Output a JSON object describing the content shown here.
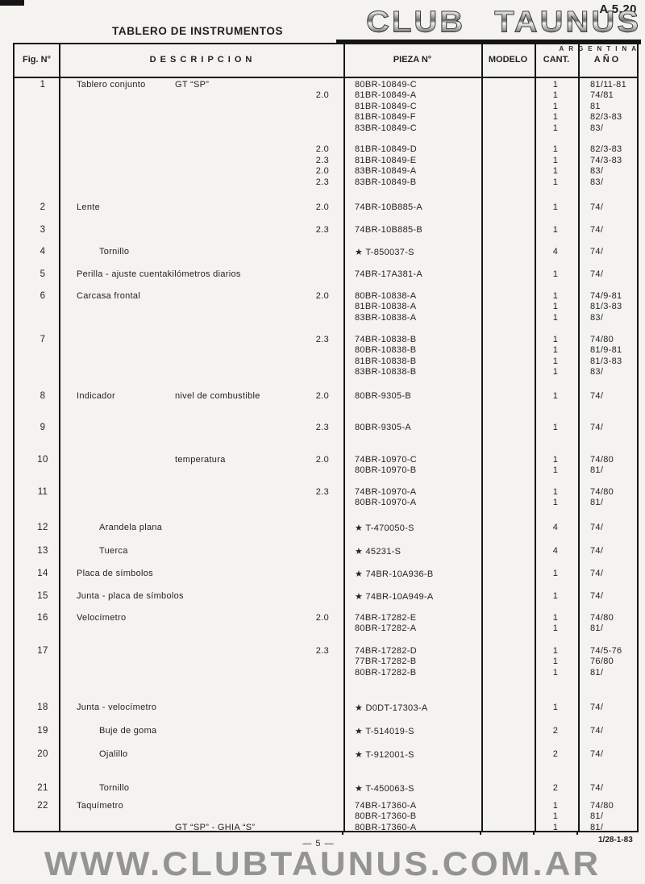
{
  "page": {
    "code": "A 5.20",
    "title": "TABLERO DE INSTRUMENTOS",
    "page_number": "— 5 —",
    "date_code": "1/28-1-83",
    "watermark": "WWW.CLUBTAUNUS.COM.AR"
  },
  "logo": {
    "name": "CLUB TAUNUS",
    "subtitle": "ARGENTINA"
  },
  "table": {
    "headers": {
      "fig": "Fig. N°",
      "desc": "D E S C R I P C I O N",
      "part": "PIEZA N°",
      "model": "MODELO",
      "qty": "CANT.",
      "year": "AÑO"
    },
    "rows": [
      {
        "fig": "1",
        "lines": [
          {
            "desc": "Tablero conjunto",
            "desc2": "GT “SP”",
            "part": "80BR-10849-C",
            "qty": "1",
            "year": "81/11-81"
          },
          {
            "eng": "2.0",
            "part": "81BR-10849-A",
            "qty": "1",
            "year": "74/81"
          },
          {
            "part": "81BR-10849-C",
            "qty": "1",
            "year": "81"
          },
          {
            "part": "81BR-10849-F",
            "qty": "1",
            "year": "82/3-83"
          },
          {
            "part": "83BR-10849-C",
            "qty": "1",
            "year": "83/"
          },
          {},
          {
            "eng": "2.0",
            "part": "81BR-10849-D",
            "qty": "1",
            "year": "82/3-83"
          },
          {
            "eng": "2.3",
            "part": "81BR-10849-E",
            "qty": "1",
            "year": "74/3-83"
          },
          {
            "eng": "2.0",
            "part": "83BR-10849-A",
            "qty": "1",
            "year": "83/"
          },
          {
            "eng": "2.3",
            "part": "83BR-10849-B",
            "qty": "1",
            "year": "83/"
          }
        ]
      },
      {
        "fig": "2",
        "lines": [
          {
            "desc": "Lente",
            "eng": "2.0",
            "part": "74BR-10B885-A",
            "qty": "1",
            "year": "74/"
          }
        ]
      },
      {
        "fig": "3",
        "lines": [
          {
            "eng": "2.3",
            "part": "74BR-10B885-B",
            "qty": "1",
            "year": "74/"
          }
        ]
      },
      {
        "fig": "4",
        "lines": [
          {
            "desc": "Tornillo",
            "lvl": 1,
            "part": "★ T-850037-S",
            "qty": "4",
            "year": "74/"
          }
        ]
      },
      {
        "fig": "5",
        "lines": [
          {
            "desc": "Perilla - ajuste cuentakilómetros diarios",
            "part": "74BR-17A381-A",
            "qty": "1",
            "year": "74/"
          }
        ]
      },
      {
        "fig": "6",
        "lines": [
          {
            "desc": "Carcasa frontal",
            "eng": "2.0",
            "part": "80BR-10838-A",
            "qty": "1",
            "year": "74/9-81"
          },
          {
            "part": "81BR-10838-A",
            "qty": "1",
            "year": "81/3-83"
          },
          {
            "part": "83BR-10838-A",
            "qty": "1",
            "year": "83/"
          }
        ]
      },
      {
        "fig": "7",
        "lines": [
          {
            "eng": "2.3",
            "part": "74BR-10838-B",
            "qty": "1",
            "year": "74/80"
          },
          {
            "part": "80BR-10838-B",
            "qty": "1",
            "year": "81/9-81"
          },
          {
            "part": "81BR-10838-B",
            "qty": "1",
            "year": "81/3-83"
          },
          {
            "part": "83BR-10838-B",
            "qty": "1",
            "year": "83/"
          }
        ]
      },
      {
        "fig": "8",
        "lines": [
          {
            "desc": "Indicador",
            "desc2": "nivel de combustible",
            "eng": "2.0",
            "part": "80BR-9305-B",
            "qty": "1",
            "year": "74/"
          }
        ]
      },
      {
        "fig": "9",
        "lines": [
          {
            "eng": "2.3",
            "part": "80BR-9305-A",
            "qty": "1",
            "year": "74/"
          }
        ]
      },
      {
        "fig": "10",
        "lines": [
          {
            "desc2": "temperatura",
            "eng": "2.0",
            "part": "74BR-10970-C",
            "qty": "1",
            "year": "74/80"
          },
          {
            "part": "80BR-10970-B",
            "qty": "1",
            "year": "81/"
          }
        ]
      },
      {
        "fig": "11",
        "lines": [
          {
            "eng": "2.3",
            "part": "74BR-10970-A",
            "qty": "1",
            "year": "74/80"
          },
          {
            "part": "80BR-10970-A",
            "qty": "1",
            "year": "81/"
          }
        ]
      },
      {
        "fig": "12",
        "lines": [
          {
            "desc": "Arandela plana",
            "lvl": 1,
            "part": "★ T-470050-S",
            "qty": "4",
            "year": "74/"
          }
        ]
      },
      {
        "fig": "13",
        "lines": [
          {
            "desc": "Tuerca",
            "lvl": 1,
            "part": "★ 45231-S",
            "qty": "4",
            "year": "74/"
          }
        ]
      },
      {
        "fig": "14",
        "lines": [
          {
            "desc": "Placa de símbolos",
            "part": "★ 74BR-10A936-B",
            "qty": "1",
            "year": "74/"
          }
        ]
      },
      {
        "fig": "15",
        "lines": [
          {
            "desc": "Junta - placa de símbolos",
            "part": "★ 74BR-10A949-A",
            "qty": "1",
            "year": "74/"
          }
        ]
      },
      {
        "fig": "16",
        "lines": [
          {
            "desc": "Velocímetro",
            "eng": "2.0",
            "part": "74BR-17282-E",
            "qty": "1",
            "year": "74/80"
          },
          {
            "part": "80BR-17282-A",
            "qty": "1",
            "year": "81/"
          }
        ]
      },
      {
        "fig": "17",
        "lines": [
          {
            "eng": "2.3",
            "part": "74BR-17282-D",
            "qty": "1",
            "year": "74/5-76"
          },
          {
            "part": "77BR-17282-B",
            "qty": "1",
            "year": "76/80"
          },
          {
            "part": "80BR-17282-B",
            "qty": "1",
            "year": "81/"
          }
        ]
      },
      {
        "fig": "18",
        "lines": [
          {
            "desc": "Junta - velocímetro",
            "part": "★ D0DT-17303-A",
            "qty": "1",
            "year": "74/"
          }
        ]
      },
      {
        "fig": "19",
        "lines": [
          {
            "desc": "Buje de goma",
            "lvl": 1,
            "part": "★ T-514019-S",
            "qty": "2",
            "year": "74/"
          }
        ]
      },
      {
        "fig": "20",
        "lines": [
          {
            "desc": "Ojalillo",
            "lvl": 1,
            "part": "★ T-912001-S",
            "qty": "2",
            "year": "74/"
          }
        ]
      },
      {
        "fig": "21",
        "lines": [
          {
            "desc": "Tornillo",
            "lvl": 1,
            "part": "★ T-450063-S",
            "qty": "2",
            "year": "74/"
          }
        ]
      },
      {
        "fig": "22",
        "lines": [
          {
            "desc": "Taquímetro",
            "part": "74BR-17360-A",
            "qty": "1",
            "year": "74/80"
          },
          {
            "part": "80BR-17360-B",
            "qty": "1",
            "year": "81/"
          },
          {
            "desc2": "GT “SP” - GHIA “S”",
            "part": "80BR-17360-A",
            "qty": "1",
            "year": "81/"
          }
        ]
      }
    ]
  }
}
